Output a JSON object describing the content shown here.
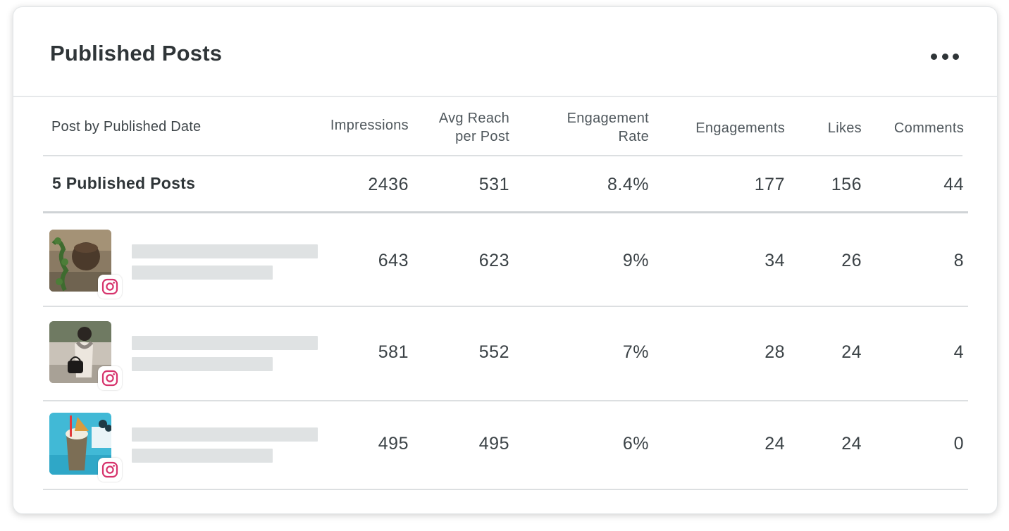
{
  "card": {
    "title": "Published Posts",
    "menu_icon": "more-horizontal-icon"
  },
  "table": {
    "columns": {
      "post": "Post by Published Date",
      "impressions": "Impressions",
      "avg_reach_1": "Avg Reach",
      "avg_reach_2": "per Post",
      "eng_rate_1": "Engagement",
      "eng_rate_2": "Rate",
      "engagements": "Engagements",
      "likes": "Likes",
      "comments": "Comments"
    },
    "summary": {
      "label": "5 Published Posts",
      "impressions": "2436",
      "avg_reach": "531",
      "eng_rate": "8.4%",
      "engagements": "177",
      "likes": "156",
      "comments": "44"
    },
    "rows": [
      {
        "network_icon": "instagram-icon",
        "impressions": "643",
        "avg_reach": "623",
        "eng_rate": "9%",
        "engagements": "34",
        "likes": "26",
        "comments": "8"
      },
      {
        "network_icon": "instagram-icon",
        "impressions": "581",
        "avg_reach": "552",
        "eng_rate": "7%",
        "engagements": "28",
        "likes": "24",
        "comments": "4"
      },
      {
        "network_icon": "instagram-icon",
        "impressions": "495",
        "avg_reach": "495",
        "eng_rate": "6%",
        "engagements": "24",
        "likes": "24",
        "comments": "0"
      }
    ]
  },
  "colors": {
    "instagram": "#d6336c",
    "placeholder": "#dfe2e3",
    "title": "#2f3538"
  }
}
